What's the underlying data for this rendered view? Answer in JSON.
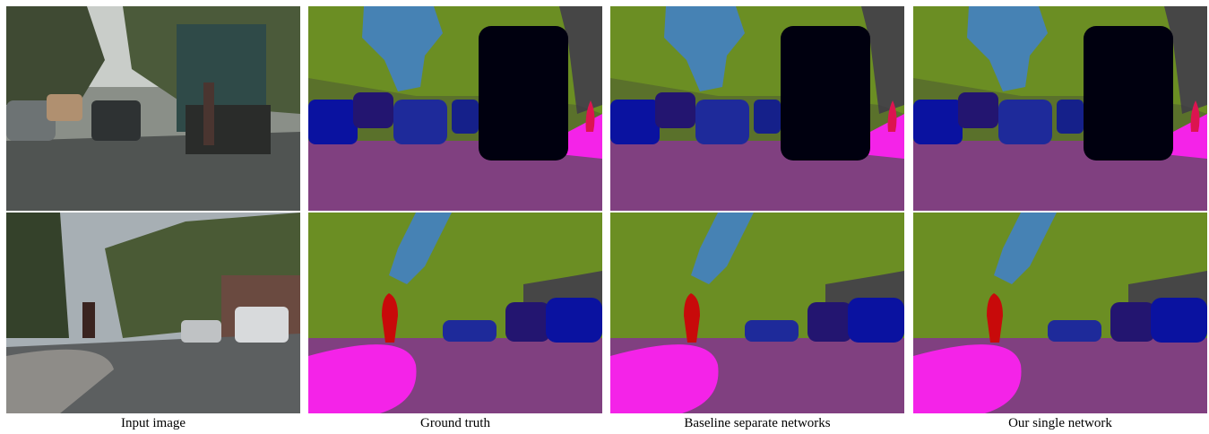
{
  "figure": {
    "captions": [
      "Input image",
      "Ground truth",
      "Baseline separate networks",
      "Our single network"
    ]
  }
}
